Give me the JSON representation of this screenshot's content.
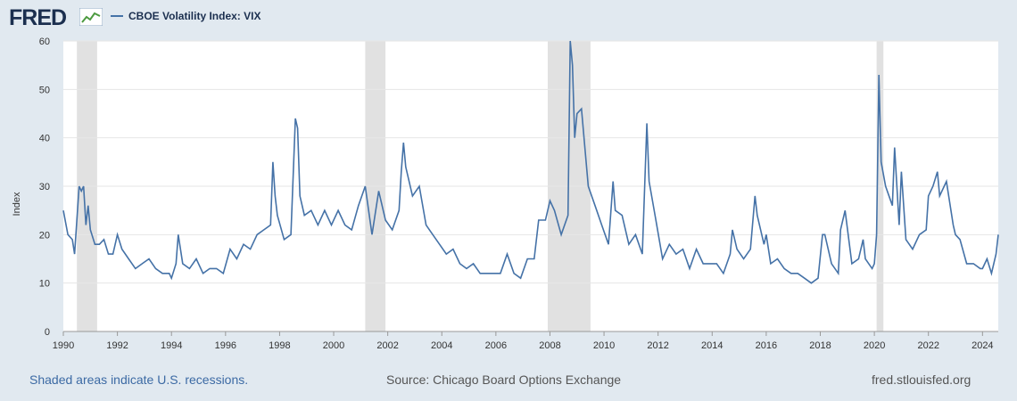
{
  "header": {
    "logo_text": "FRED",
    "logo_icon": "line-chart-icon",
    "legend_label": "CBOE Volatility Index: VIX"
  },
  "footer": {
    "recessions_note": "Shaded areas indicate U.S. recessions.",
    "source": "Source: Chicago Board Options Exchange",
    "site": "fred.stlouisfed.org"
  },
  "colors": {
    "series": "#4572a7",
    "recession": "#e1e1e1",
    "background": "#e1e9f0",
    "plot": "#ffffff"
  },
  "chart_data": {
    "type": "line",
    "ylabel": "Index",
    "ylim": [
      0,
      60
    ],
    "yticks": [
      0,
      10,
      20,
      30,
      40,
      50,
      60
    ],
    "xlim": [
      "1990-01",
      "2024-08"
    ],
    "xticks": [
      "1990",
      "1992",
      "1994",
      "1996",
      "1998",
      "2000",
      "2002",
      "2004",
      "2006",
      "2008",
      "2010",
      "2012",
      "2014",
      "2016",
      "2018",
      "2020",
      "2022",
      "2024"
    ],
    "grid": "horizontal",
    "legend": "top-left",
    "recessions": [
      [
        "1990-07",
        "1991-03"
      ],
      [
        "2001-03",
        "2001-11"
      ],
      [
        "2007-12",
        "2009-06"
      ],
      [
        "2020-02",
        "2020-04"
      ]
    ],
    "series": [
      {
        "name": "CBOE Volatility Index: VIX",
        "points": [
          [
            "1990-01",
            25
          ],
          [
            "1990-03",
            20
          ],
          [
            "1990-05",
            19
          ],
          [
            "1990-06",
            16
          ],
          [
            "1990-08",
            30
          ],
          [
            "1990-09",
            29
          ],
          [
            "1990-10",
            30
          ],
          [
            "1990-11",
            22
          ],
          [
            "1990-12",
            26
          ],
          [
            "1991-01",
            21
          ],
          [
            "1991-03",
            18
          ],
          [
            "1991-05",
            18
          ],
          [
            "1991-07",
            19
          ],
          [
            "1991-09",
            16
          ],
          [
            "1991-11",
            16
          ],
          [
            "1992-01",
            20
          ],
          [
            "1992-03",
            17
          ],
          [
            "1992-06",
            15
          ],
          [
            "1992-09",
            13
          ],
          [
            "1992-12",
            14
          ],
          [
            "1993-03",
            15
          ],
          [
            "1993-06",
            13
          ],
          [
            "1993-09",
            12
          ],
          [
            "1993-12",
            12
          ],
          [
            "1994-01",
            11
          ],
          [
            "1994-03",
            14
          ],
          [
            "1994-04",
            20
          ],
          [
            "1994-06",
            14
          ],
          [
            "1994-09",
            13
          ],
          [
            "1994-12",
            15
          ],
          [
            "1995-03",
            12
          ],
          [
            "1995-06",
            13
          ],
          [
            "1995-09",
            13
          ],
          [
            "1995-12",
            12
          ],
          [
            "1996-03",
            17
          ],
          [
            "1996-06",
            15
          ],
          [
            "1996-09",
            18
          ],
          [
            "1996-12",
            17
          ],
          [
            "1997-03",
            20
          ],
          [
            "1997-06",
            21
          ],
          [
            "1997-09",
            22
          ],
          [
            "1997-10",
            35
          ],
          [
            "1997-11",
            28
          ],
          [
            "1997-12",
            24
          ],
          [
            "1998-03",
            19
          ],
          [
            "1998-06",
            20
          ],
          [
            "1998-08",
            44
          ],
          [
            "1998-09",
            42
          ],
          [
            "1998-10",
            28
          ],
          [
            "1998-12",
            24
          ],
          [
            "1999-03",
            25
          ],
          [
            "1999-06",
            22
          ],
          [
            "1999-09",
            25
          ],
          [
            "1999-12",
            22
          ],
          [
            "2000-03",
            25
          ],
          [
            "2000-06",
            22
          ],
          [
            "2000-09",
            21
          ],
          [
            "2000-12",
            26
          ],
          [
            "2001-03",
            30
          ],
          [
            "2001-06",
            20
          ],
          [
            "2001-09",
            29
          ],
          [
            "2001-12",
            23
          ],
          [
            "2002-03",
            21
          ],
          [
            "2002-06",
            25
          ],
          [
            "2002-07",
            33
          ],
          [
            "2002-08",
            39
          ],
          [
            "2002-09",
            34
          ],
          [
            "2002-12",
            28
          ],
          [
            "2003-03",
            30
          ],
          [
            "2003-06",
            22
          ],
          [
            "2003-09",
            20
          ],
          [
            "2003-12",
            18
          ],
          [
            "2004-03",
            16
          ],
          [
            "2004-06",
            17
          ],
          [
            "2004-09",
            14
          ],
          [
            "2004-12",
            13
          ],
          [
            "2005-03",
            14
          ],
          [
            "2005-06",
            12
          ],
          [
            "2005-09",
            12
          ],
          [
            "2005-12",
            12
          ],
          [
            "2006-03",
            12
          ],
          [
            "2006-06",
            16
          ],
          [
            "2006-09",
            12
          ],
          [
            "2006-12",
            11
          ],
          [
            "2007-03",
            15
          ],
          [
            "2007-06",
            15
          ],
          [
            "2007-08",
            23
          ],
          [
            "2007-11",
            23
          ],
          [
            "2008-01",
            27
          ],
          [
            "2008-03",
            25
          ],
          [
            "2008-06",
            20
          ],
          [
            "2008-09",
            24
          ],
          [
            "2008-10",
            60
          ],
          [
            "2008-11",
            55
          ],
          [
            "2008-12",
            40
          ],
          [
            "2009-01",
            45
          ],
          [
            "2009-03",
            46
          ],
          [
            "2009-06",
            30
          ],
          [
            "2009-09",
            26
          ],
          [
            "2009-12",
            22
          ],
          [
            "2010-03",
            18
          ],
          [
            "2010-05",
            31
          ],
          [
            "2010-06",
            25
          ],
          [
            "2010-09",
            24
          ],
          [
            "2010-12",
            18
          ],
          [
            "2011-03",
            20
          ],
          [
            "2011-06",
            16
          ],
          [
            "2011-08",
            43
          ],
          [
            "2011-09",
            31
          ],
          [
            "2011-12",
            23
          ],
          [
            "2012-03",
            15
          ],
          [
            "2012-06",
            18
          ],
          [
            "2012-09",
            16
          ],
          [
            "2012-12",
            17
          ],
          [
            "2013-03",
            13
          ],
          [
            "2013-06",
            17
          ],
          [
            "2013-09",
            14
          ],
          [
            "2013-12",
            14
          ],
          [
            "2014-03",
            14
          ],
          [
            "2014-06",
            12
          ],
          [
            "2014-09",
            16
          ],
          [
            "2014-10",
            21
          ],
          [
            "2014-12",
            17
          ],
          [
            "2015-03",
            15
          ],
          [
            "2015-06",
            17
          ],
          [
            "2015-08",
            28
          ],
          [
            "2015-09",
            24
          ],
          [
            "2015-12",
            18
          ],
          [
            "2016-01",
            20
          ],
          [
            "2016-03",
            14
          ],
          [
            "2016-06",
            15
          ],
          [
            "2016-09",
            13
          ],
          [
            "2016-12",
            12
          ],
          [
            "2017-03",
            12
          ],
          [
            "2017-06",
            11
          ],
          [
            "2017-09",
            10
          ],
          [
            "2017-12",
            11
          ],
          [
            "2018-02",
            20
          ],
          [
            "2018-03",
            20
          ],
          [
            "2018-06",
            14
          ],
          [
            "2018-09",
            12
          ],
          [
            "2018-10",
            21
          ],
          [
            "2018-12",
            25
          ],
          [
            "2019-03",
            14
          ],
          [
            "2019-06",
            15
          ],
          [
            "2019-08",
            19
          ],
          [
            "2019-09",
            15
          ],
          [
            "2019-12",
            13
          ],
          [
            "2020-01",
            14
          ],
          [
            "2020-02",
            20
          ],
          [
            "2020-03",
            53
          ],
          [
            "2020-04",
            35
          ],
          [
            "2020-06",
            30
          ],
          [
            "2020-09",
            26
          ],
          [
            "2020-10",
            38
          ],
          [
            "2020-12",
            22
          ],
          [
            "2021-01",
            33
          ],
          [
            "2021-03",
            19
          ],
          [
            "2021-06",
            17
          ],
          [
            "2021-09",
            20
          ],
          [
            "2021-12",
            21
          ],
          [
            "2022-01",
            28
          ],
          [
            "2022-03",
            30
          ],
          [
            "2022-05",
            33
          ],
          [
            "2022-06",
            28
          ],
          [
            "2022-09",
            31
          ],
          [
            "2022-12",
            22
          ],
          [
            "2023-01",
            20
          ],
          [
            "2023-03",
            19
          ],
          [
            "2023-06",
            14
          ],
          [
            "2023-09",
            14
          ],
          [
            "2023-12",
            13
          ],
          [
            "2024-01",
            13
          ],
          [
            "2024-03",
            15
          ],
          [
            "2024-05",
            12
          ],
          [
            "2024-07",
            16
          ],
          [
            "2024-08",
            20
          ]
        ]
      }
    ]
  }
}
